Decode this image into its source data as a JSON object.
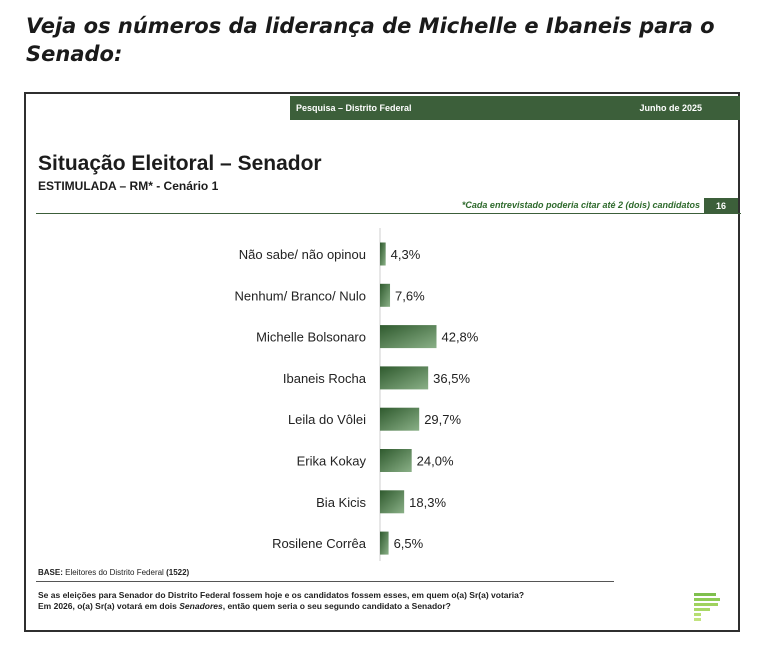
{
  "headline": "Veja os números da liderança de Michelle e Ibaneis para o Senado:",
  "slide": {
    "topbar_left": "Pesquisa – Distrito Federal",
    "topbar_right": "Junho de 2025",
    "note": "*Cada entrevistado poderia citar até 2 (dois) candidatos",
    "page_number": "16",
    "base_label": "BASE:",
    "base_text": "Eleitores do Distrito Federal",
    "base_count": "(1522)",
    "question_line1": "Se as eleições para Senador do Distrito Federal fossem hoje e os candidatos fossem esses, em quem o(a) Sr(a) votaria?",
    "question_line2_a": "Em 2026, o(a) Sr(a) votará em dois ",
    "question_line2_em": "Senadores",
    "question_line2_b": ", então quem seria o seu segundo candidato a Senador?"
  },
  "colors": {
    "brand_green": "#3c5f3a",
    "bar_dark": "#2f5a2e",
    "bar_light": "#8ab087"
  },
  "chart_data": {
    "type": "bar",
    "orientation": "horizontal",
    "title": "Situação Eleitoral – Senador",
    "subtitle": "ESTIMULADA – RM* - Cenário 1",
    "categories": [
      "Não sabe/ não opinou",
      "Nenhum/ Branco/ Nulo",
      "Michelle Bolsonaro",
      "Ibaneis Rocha",
      "Leila do Vôlei",
      "Erika Kokay",
      "Bia Kicis",
      "Rosilene Corrêa"
    ],
    "values": [
      4.3,
      7.6,
      42.8,
      36.5,
      29.7,
      24.0,
      18.3,
      6.5
    ],
    "value_labels": [
      "4,3%",
      "7,6%",
      "42,8%",
      "36,5%",
      "29,7%",
      "24,0%",
      "18,3%",
      "6,5%"
    ],
    "grid": false
  }
}
